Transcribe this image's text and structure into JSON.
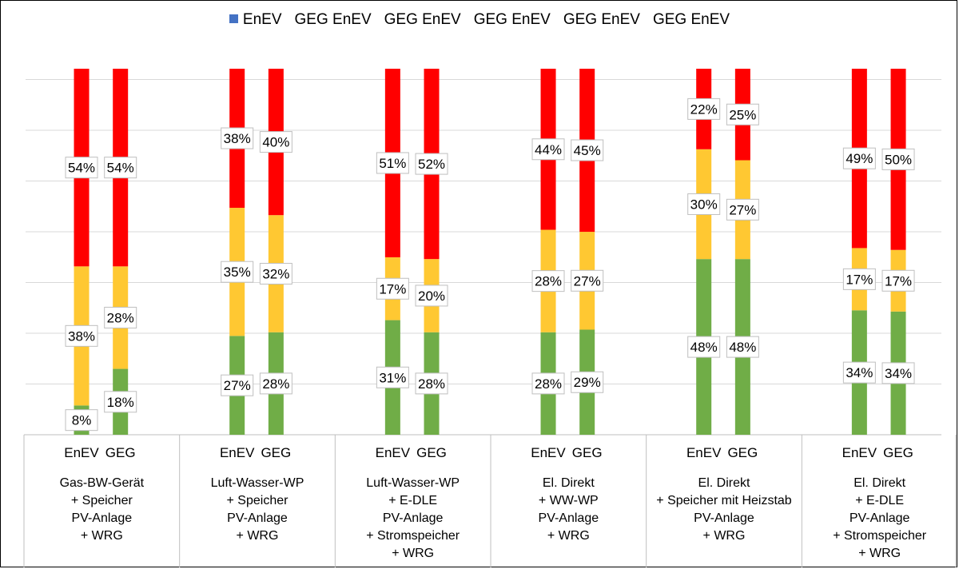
{
  "chart_data": {
    "type": "bar",
    "stacked": "100%",
    "legend": {
      "position": "top",
      "entries": [
        {
          "label": "EnEV",
          "color": "#4472C4",
          "show_swatch": true
        },
        {
          "label": "GEG EnEV",
          "color": "#ffffff",
          "show_swatch": false
        },
        {
          "label": "GEG EnEV",
          "color": "#ffffff",
          "show_swatch": false
        },
        {
          "label": "GEG EnEV",
          "color": "#ffffff",
          "show_swatch": false
        },
        {
          "label": "GEG EnEV",
          "color": "#ffffff",
          "show_swatch": false
        },
        {
          "label": "GEG EnEV",
          "color": "#ffffff",
          "show_swatch": false
        }
      ]
    },
    "grid": true,
    "groups": [
      {
        "label": [
          "Gas-BW-Gerät",
          "+ Speicher",
          "PV-Anlage",
          "+ WRG"
        ],
        "bars": [
          {
            "name": "EnEV",
            "green": 8,
            "yellow": 38,
            "red": 54
          },
          {
            "name": "GEG",
            "green": 18,
            "yellow": 28,
            "red": 54
          }
        ]
      },
      {
        "label": [
          "Luft-Wasser-WP",
          "+ Speicher",
          "PV-Anlage",
          "+ WRG"
        ],
        "bars": [
          {
            "name": "EnEV",
            "green": 27,
            "yellow": 35,
            "red": 38
          },
          {
            "name": "GEG",
            "green": 28,
            "yellow": 32,
            "red": 40
          }
        ]
      },
      {
        "label": [
          "Luft-Wasser-WP",
          "+ E-DLE",
          "PV-Anlage",
          "+ Stromspeicher",
          "+ WRG"
        ],
        "bars": [
          {
            "name": "EnEV",
            "green": 31,
            "yellow": 17,
            "red": 51
          },
          {
            "name": "GEG",
            "green": 28,
            "yellow": 20,
            "red": 52
          }
        ]
      },
      {
        "label": [
          "El. Direkt",
          "+ WW-WP",
          "PV-Anlage",
          "+ WRG"
        ],
        "bars": [
          {
            "name": "EnEV",
            "green": 28,
            "yellow": 28,
            "red": 44
          },
          {
            "name": "GEG",
            "green": 29,
            "yellow": 27,
            "red": 45
          }
        ]
      },
      {
        "label": [
          "El. Direkt",
          "+ Speicher mit Heizstab",
          "PV-Anlage",
          "+ WRG"
        ],
        "bars": [
          {
            "name": "EnEV",
            "green": 48,
            "yellow": 30,
            "red": 22
          },
          {
            "name": "GEG",
            "green": 48,
            "yellow": 27,
            "red": 25
          }
        ]
      },
      {
        "label": [
          "El. Direkt",
          "+ E-DLE",
          "PV-Anlage",
          "+ Stromspeicher",
          "+ WRG"
        ],
        "bars": [
          {
            "name": "EnEV",
            "green": 34,
            "yellow": 17,
            "red": 49
          },
          {
            "name": "GEG",
            "green": 34,
            "yellow": 17,
            "red": 50
          }
        ]
      }
    ],
    "segment_colors": {
      "green": "#70AD47",
      "yellow": "#FFC832",
      "red": "#FF0000"
    },
    "value_suffix": "%"
  }
}
